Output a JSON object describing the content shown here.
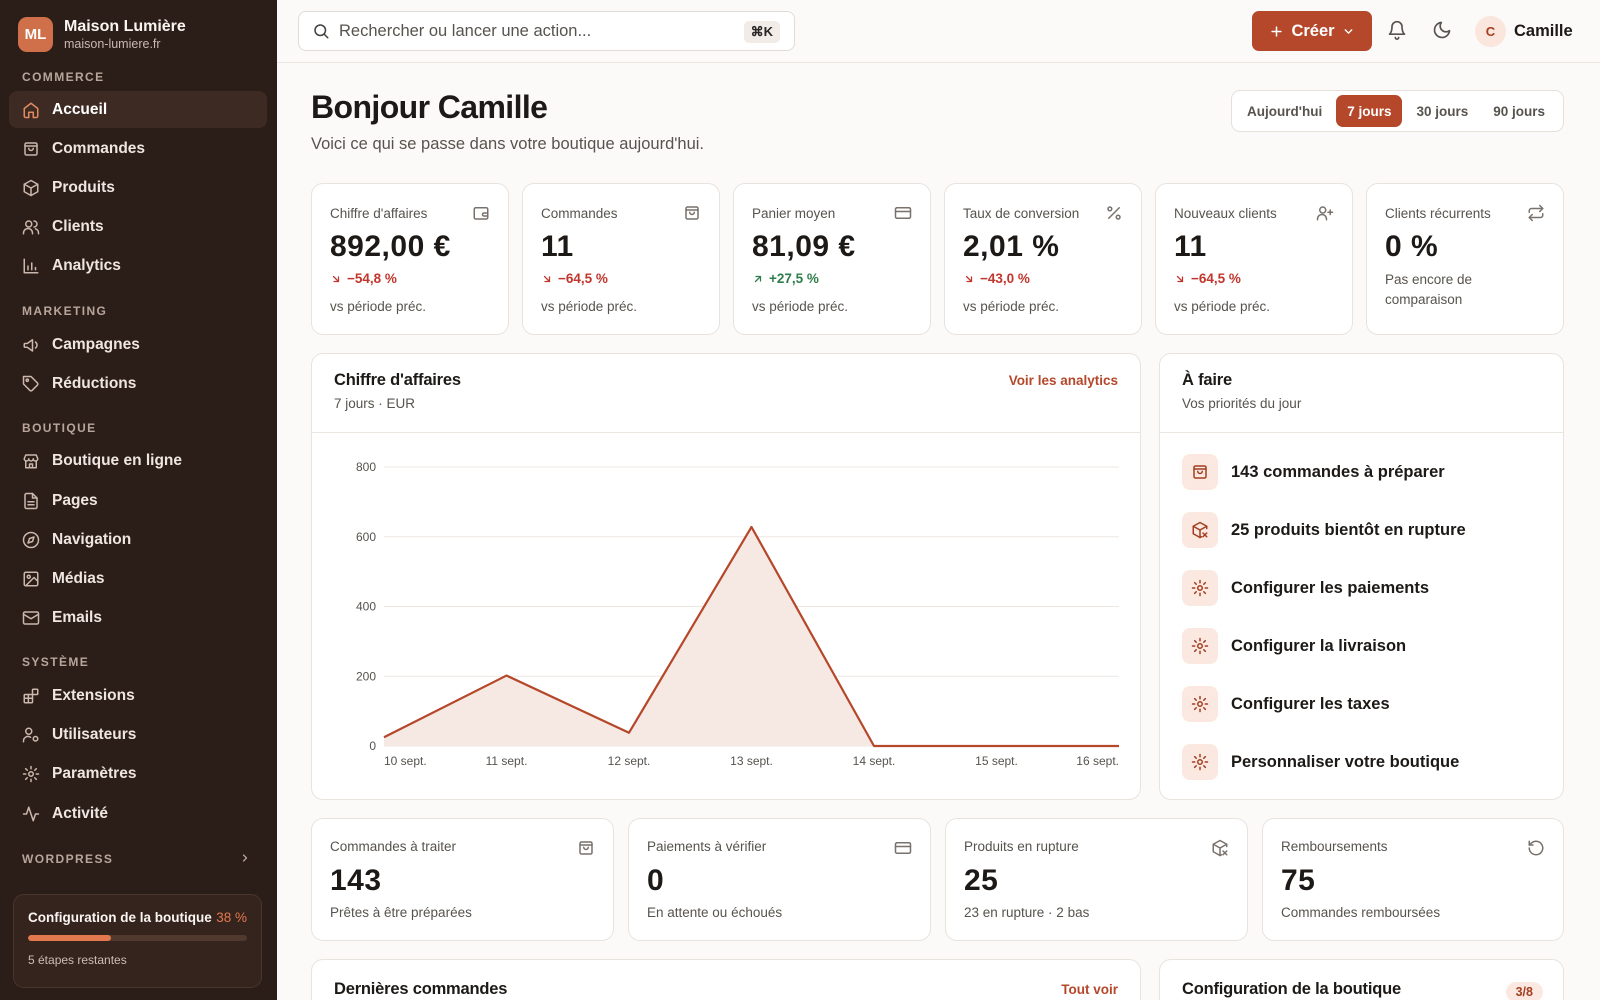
{
  "brand": {
    "initials": "ML",
    "name": "Maison Lumière",
    "url": "maison-lumiere.fr"
  },
  "sidebar": {
    "sections": [
      "COMMERCE",
      "MARKETING",
      "BOUTIQUE",
      "SYSTÈME",
      "WORDPRESS"
    ],
    "items": [
      {
        "label": "Accueil",
        "icon": "home-icon",
        "active": true
      },
      {
        "label": "Commandes",
        "icon": "shopping-bag-icon"
      },
      {
        "label": "Produits",
        "icon": "package-icon"
      },
      {
        "label": "Clients",
        "icon": "users-icon"
      },
      {
        "label": "Analytics",
        "icon": "bar-chart-icon"
      },
      {
        "label": "Campagnes",
        "icon": "megaphone-icon"
      },
      {
        "label": "Réductions",
        "icon": "tag-icon"
      },
      {
        "label": "Boutique en ligne",
        "icon": "store-icon"
      },
      {
        "label": "Pages",
        "icon": "file-icon"
      },
      {
        "label": "Navigation",
        "icon": "compass-icon"
      },
      {
        "label": "Médias",
        "icon": "image-icon"
      },
      {
        "label": "Emails",
        "icon": "mail-icon"
      },
      {
        "label": "Extensions",
        "icon": "blocks-icon"
      },
      {
        "label": "Utilisateurs",
        "icon": "user-cog-icon"
      },
      {
        "label": "Paramètres",
        "icon": "gear-icon"
      },
      {
        "label": "Activité",
        "icon": "activity-icon"
      }
    ],
    "setup": {
      "title": "Configuration de la boutique",
      "percent_label": "38 %",
      "progress": 0.38,
      "remaining": "5 étapes restantes"
    }
  },
  "topbar": {
    "search_placeholder": "Rechercher ou lancer une action...",
    "shortcut": "⌘K",
    "create_label": "Créer",
    "user_initial": "C",
    "user_name": "Camille"
  },
  "greeting": {
    "title": "Bonjour Camille",
    "subtitle": "Voici ce qui se passe dans votre boutique aujourd'hui."
  },
  "ranges": [
    {
      "label": "Aujourd'hui",
      "active": false
    },
    {
      "label": "7 jours",
      "active": true
    },
    {
      "label": "30 jours",
      "active": false
    },
    {
      "label": "90 jours",
      "active": false
    }
  ],
  "kpis": [
    {
      "label": "Chiffre d'affaires",
      "value": "892,00 €",
      "delta": "−54,8 %",
      "trend": "down",
      "foot": "vs période préc.",
      "icon": "wallet-icon"
    },
    {
      "label": "Commandes",
      "value": "11",
      "delta": "−64,5 %",
      "trend": "down",
      "foot": "vs période préc.",
      "icon": "shopping-bag-icon"
    },
    {
      "label": "Panier moyen",
      "value": "81,09 €",
      "delta": "+27,5 %",
      "trend": "up",
      "foot": "vs période préc.",
      "icon": "credit-card-icon"
    },
    {
      "label": "Taux de conversion",
      "value": "2,01 %",
      "delta": "−43,0 %",
      "trend": "down",
      "foot": "vs période préc.",
      "icon": "percent-icon"
    },
    {
      "label": "Nouveaux clients",
      "value": "11",
      "delta": "−64,5 %",
      "trend": "down",
      "foot": "vs période préc.",
      "icon": "user-plus-icon"
    },
    {
      "label": "Clients récurrents",
      "value": "0 %",
      "note": "Pas encore de comparaison",
      "icon": "repeat-icon"
    }
  ],
  "revenue_card": {
    "title": "Chiffre d'affaires",
    "subtitle": "7 jours · EUR",
    "link": "Voir les analytics"
  },
  "chart_data": {
    "type": "area",
    "title": "Chiffre d'affaires",
    "x": [
      "10 sept.",
      "11 sept.",
      "12 sept.",
      "13 sept.",
      "14 sept.",
      "15 sept.",
      "16 sept."
    ],
    "series": [
      {
        "values": [
          25,
          202,
          38,
          628,
          0,
          0,
          0
        ]
      }
    ],
    "ylim": [
      0,
      800
    ],
    "yticks": [
      0,
      200,
      400,
      600,
      800
    ],
    "grid": true,
    "color": "#b5472a",
    "fill": "#f6e8e2"
  },
  "todo": {
    "title": "À faire",
    "subtitle": "Vos priorités du jour",
    "items": [
      {
        "label": "143 commandes à préparer",
        "icon": "shopping-bag-icon"
      },
      {
        "label": "25 produits bientôt en rupture",
        "icon": "package-x-icon"
      },
      {
        "label": "Configurer les paiements",
        "icon": "gear-icon"
      },
      {
        "label": "Configurer la livraison",
        "icon": "gear-icon"
      },
      {
        "label": "Configurer les taxes",
        "icon": "gear-icon"
      },
      {
        "label": "Personnaliser votre boutique",
        "icon": "gear-icon"
      }
    ]
  },
  "stats": [
    {
      "label": "Commandes à traiter",
      "value": "143",
      "sub": "Prêtes à être préparées",
      "icon": "shopping-bag-icon"
    },
    {
      "label": "Paiements à vérifier",
      "value": "0",
      "sub": "En attente ou échoués",
      "icon": "credit-card-icon"
    },
    {
      "label": "Produits en rupture",
      "value": "25",
      "sub": "23 en rupture · 2 bas",
      "icon": "package-x-icon"
    },
    {
      "label": "Remboursements",
      "value": "75",
      "sub": "Commandes remboursées",
      "icon": "rotate-ccw-icon"
    }
  ],
  "recent_orders": {
    "title": "Dernières commandes",
    "link": "Tout voir"
  },
  "store_setup": {
    "title": "Configuration de la boutique",
    "badge": "3/8"
  },
  "colors": {
    "accent": "#b5472a",
    "sidebar": "#2b1d18",
    "negative": "#c2352c",
    "positive": "#2f7d4a"
  }
}
